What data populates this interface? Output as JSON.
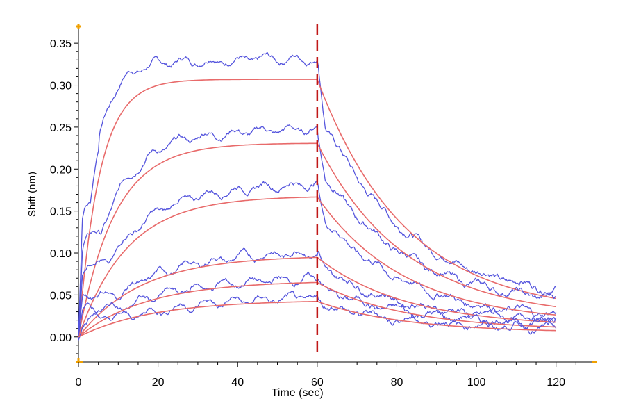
{
  "chart_data": {
    "type": "line",
    "xlabel": "Time (sec)",
    "ylabel": "Shift (nm)",
    "xlim": [
      0,
      130
    ],
    "ylim": [
      -0.03,
      0.37
    ],
    "x_ticks": [
      0,
      20,
      40,
      60,
      80,
      100,
      120
    ],
    "y_ticks": [
      0.0,
      0.05,
      0.1,
      0.15,
      0.2,
      0.25,
      0.3,
      0.35
    ],
    "y_tick_labels": [
      "0.00",
      "0.05",
      "0.10",
      "0.15",
      "0.20",
      "0.25",
      "0.30",
      "0.35"
    ],
    "grid": false,
    "legend": "none",
    "marker_line_x": 60,
    "colors": {
      "raw": "#5555dd",
      "fit": "#e86a6a",
      "marker": "#c01818",
      "axis_corner": "#f0a000"
    },
    "series": [
      {
        "kind": "raw",
        "plateau": 0.33,
        "peak": 0.335,
        "end": 0.045
      },
      {
        "kind": "fit",
        "plateau": 0.307,
        "end": 0.027
      },
      {
        "kind": "raw",
        "plateau": 0.245,
        "peak": 0.25,
        "end": 0.037
      },
      {
        "kind": "fit",
        "plateau": 0.231,
        "end": 0.022
      },
      {
        "kind": "raw",
        "plateau": 0.18,
        "peak": 0.185,
        "end": 0.02
      },
      {
        "kind": "fit",
        "plateau": 0.168,
        "end": 0.016
      },
      {
        "kind": "raw",
        "plateau": 0.102,
        "peak": 0.104,
        "end": 0.017
      },
      {
        "kind": "fit",
        "plateau": 0.097,
        "end": 0.012
      },
      {
        "kind": "raw",
        "plateau": 0.07,
        "peak": 0.072,
        "end": 0.014
      },
      {
        "kind": "fit",
        "plateau": 0.067,
        "end": 0.008
      },
      {
        "kind": "raw",
        "plateau": 0.047,
        "peak": 0.048,
        "end": 0.01
      },
      {
        "kind": "fit",
        "plateau": 0.044,
        "end": 0.005
      }
    ]
  }
}
